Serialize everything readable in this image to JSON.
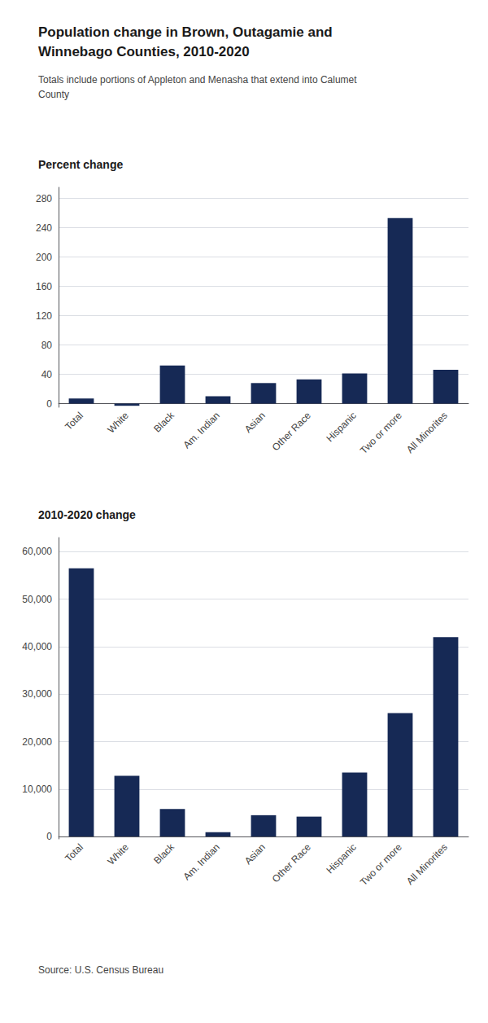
{
  "title": "Population change in Brown, Outagamie and\nWinnebago Counties, 2010-2020",
  "subtitle": "Totals include portions of Appleton and Menasha that extend into Calumet\nCounty",
  "source": "Source: U.S. Census Bureau",
  "chart_data": [
    {
      "type": "bar",
      "title": "Percent change",
      "categories": [
        "Total",
        "White",
        "Black",
        "Am. Indian",
        "Asian",
        "Other Race",
        "Hispanic",
        "Two or more",
        "All Minorites"
      ],
      "values": [
        7,
        -3,
        52,
        10,
        28,
        33,
        41,
        253,
        46
      ],
      "color": "#162955",
      "ylim": [
        -5,
        295
      ],
      "yticks": [
        0,
        40,
        80,
        120,
        160,
        200,
        240,
        280
      ],
      "grid": true
    },
    {
      "type": "bar",
      "title": "2010-2020 change",
      "categories": [
        "Total",
        "White",
        "Black",
        "Am. Indian",
        "Asian",
        "Other Race",
        "Hispanic",
        "Two or more",
        "All Minorites"
      ],
      "values": [
        56500,
        12800,
        5800,
        900,
        4500,
        4200,
        13500,
        26000,
        42000
      ],
      "color": "#162955",
      "ylim": [
        -500,
        63000
      ],
      "yticks": [
        0,
        {
          "value": 10000,
          "label": "10,000"
        },
        {
          "value": 20000,
          "label": "20,000"
        },
        {
          "value": 30000,
          "label": "30,000"
        },
        {
          "value": 40000,
          "label": "40,000"
        },
        {
          "value": 50000,
          "label": "50,000"
        },
        {
          "value": 60000,
          "label": "60,000"
        }
      ],
      "grid": true
    }
  ]
}
